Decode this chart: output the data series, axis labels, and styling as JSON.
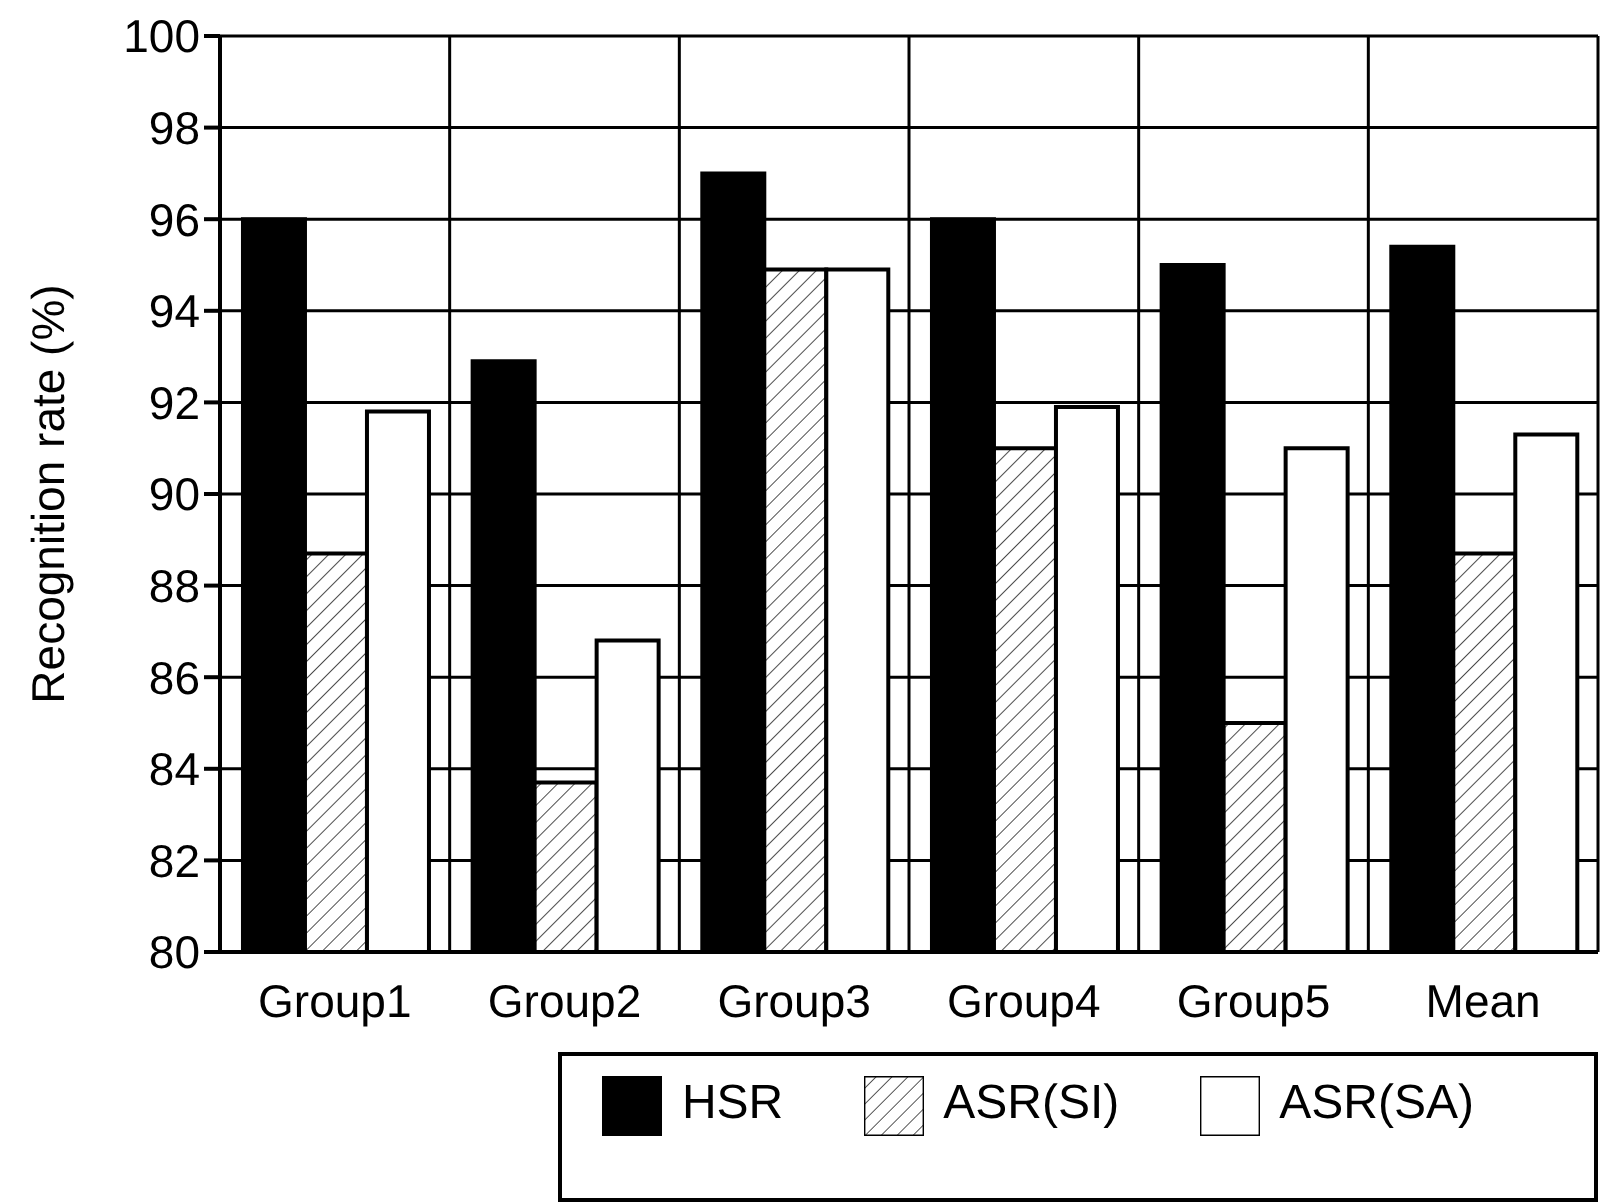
{
  "chart_data": {
    "type": "bar",
    "ylabel": "Recognition rate (%)",
    "categories": [
      "Group1",
      "Group2",
      "Group3",
      "Group4",
      "Group5",
      "Mean"
    ],
    "series": [
      {
        "name": "HSR",
        "color": "#000000",
        "values": [
          96,
          92.9,
          97,
          96,
          95,
          95.4
        ]
      },
      {
        "name": "ASR(SI)",
        "color": "#000000",
        "values": [
          88.7,
          83.7,
          94.9,
          91,
          85,
          88.7
        ]
      },
      {
        "name": "ASR(SA)",
        "color": "#ffffff",
        "values": [
          91.8,
          86.8,
          94.9,
          91.9,
          91,
          91.3
        ]
      }
    ],
    "ylim": [
      80,
      100
    ],
    "yticks": [
      80,
      82,
      84,
      86,
      88,
      90,
      92,
      94,
      96,
      98,
      100
    ],
    "grid": true,
    "legend": "bottom"
  }
}
